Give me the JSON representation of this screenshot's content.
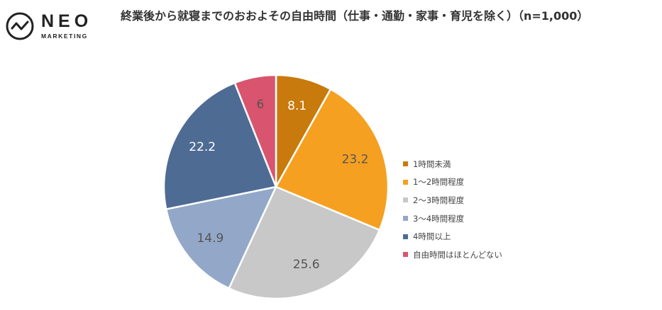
{
  "logo": {
    "name": "NEO",
    "tagline": "MARKETING"
  },
  "chart_data": {
    "type": "pie",
    "title": "終業後から就寝までのおおよその自由時間（仕事・通勤・家事・育児を除く）（n=1,000）",
    "categories": [
      "1時間未満",
      "1～2時間程度",
      "2～3時間程度",
      "3～4時間程度",
      "4時間以上",
      "自由時間はほとんどない"
    ],
    "values": [
      8.1,
      23.2,
      25.6,
      14.9,
      22.2,
      6
    ],
    "colors": [
      "#C87A0C",
      "#F5A020",
      "#C8C8C8",
      "#93A8C8",
      "#4E6B94",
      "#D9546E"
    ],
    "label_colors": [
      "#ffffff",
      "#555555",
      "#555555",
      "#555555",
      "#ffffff",
      "#555555"
    ],
    "legend_position": "right"
  }
}
